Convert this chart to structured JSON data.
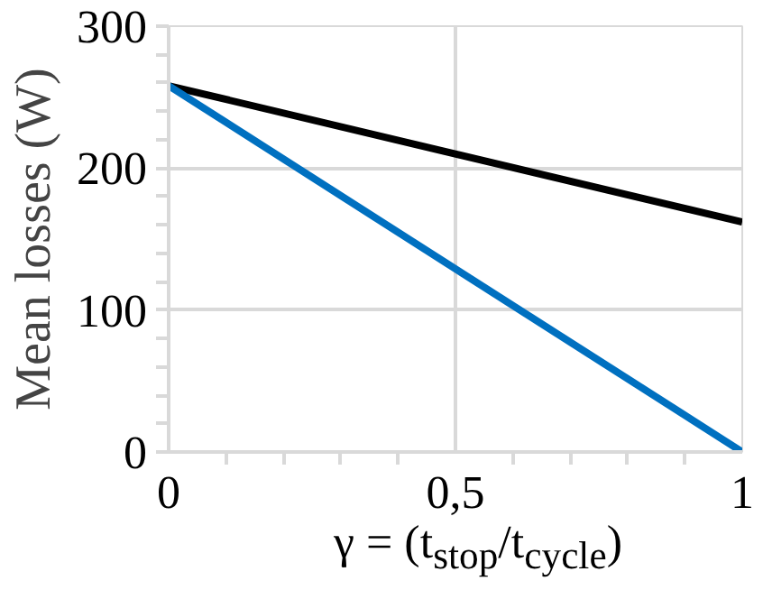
{
  "chart_data": {
    "type": "line",
    "xlabel": "γ = (t$_{stop}$/t$_{cycle}$)",
    "ylabel": "Mean losses (W)",
    "x": [
      0,
      1
    ],
    "series": [
      {
        "color": "#000000",
        "values": [
          258,
          162
        ]
      },
      {
        "color": "#0070c0",
        "values": [
          258,
          0
        ]
      }
    ],
    "xlim": [
      0,
      1
    ],
    "ylim": [
      0,
      300
    ],
    "xticks": [
      0,
      {
        "value": 0.5,
        "label": "0,5"
      },
      1
    ],
    "yticks": [
      0,
      100,
      200,
      300
    ],
    "grid": true,
    "marker": "none",
    "line_style": "solid"
  }
}
